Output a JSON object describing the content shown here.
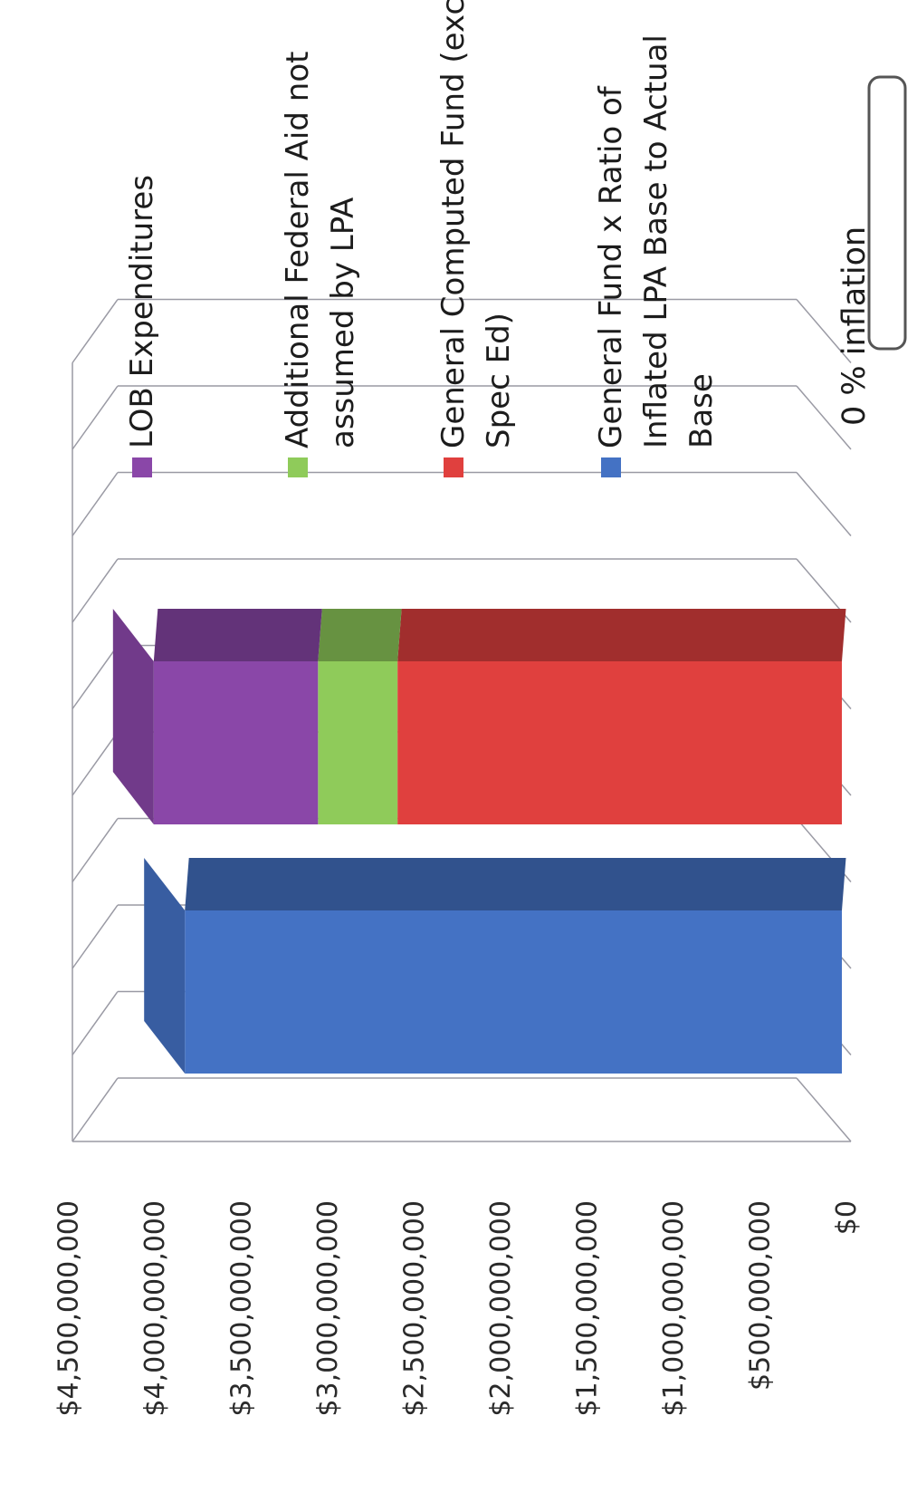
{
  "chart_data": {
    "type": "bar",
    "stacked": true,
    "three_d": true,
    "orientation": "rotated-90",
    "categories": [
      "",
      ""
    ],
    "ylim": [
      0,
      4500000000
    ],
    "y_ticks": [
      "$0",
      "$500,000,000",
      "$1,000,000,000",
      "$1,500,000,000",
      "$2,000,000,000",
      "$2,500,000,000",
      "$3,000,000,000",
      "$3,500,000,000",
      "$4,000,000,000",
      "$4,500,000,000"
    ],
    "grid": true,
    "legend_position": "right",
    "series": [
      {
        "name": "General Fund x Ratio of Inflated LPA Base to Actual Base",
        "values": [
          3800000000,
          0
        ],
        "color": "#4472C4"
      },
      {
        "name": "General Computed Fund (exc Spec Ed)",
        "values": [
          0,
          2570000000
        ],
        "color": "#E0403E"
      },
      {
        "name": "Additional Federal Aid not assumed by LPA",
        "values": [
          0,
          460000000
        ],
        "color": "#8FCB5A"
      },
      {
        "name": "LOB Expenditures",
        "values": [
          0,
          950000000
        ],
        "color": "#8A47A8"
      }
    ],
    "legend": [
      {
        "lines": [
          "LOB Expenditures"
        ],
        "color": "#8A47A8"
      },
      {
        "lines": [
          "Additional Federal Aid not",
          "assumed by LPA"
        ],
        "color": "#8FCB5A"
      },
      {
        "lines": [
          "General Computed Fund (exc",
          "Spec Ed)"
        ],
        "color": "#E0403E"
      },
      {
        "lines": [
          "General Fund x Ratio of",
          "Inflated LPA Base to Actual",
          "Base"
        ],
        "color": "#4472C4"
      }
    ],
    "annotation": "0 % inflation"
  }
}
